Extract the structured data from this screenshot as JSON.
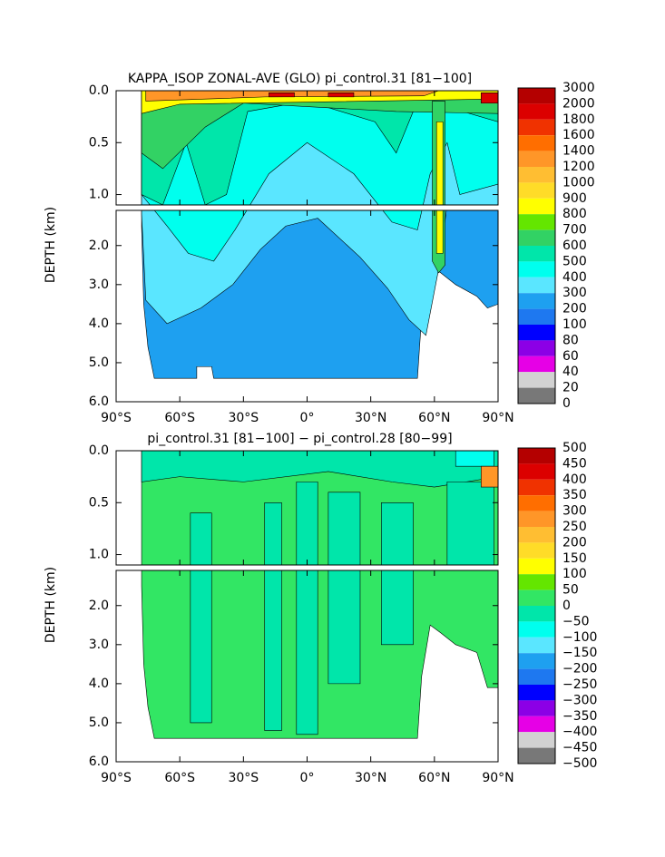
{
  "chart_data": [
    {
      "type": "contour",
      "title": "KAPPA_ISOP ZONAL-AVE (GLO) pi_control.31 [81−100]",
      "ylabel": "DEPTH (km)",
      "xlim": [
        -90,
        90
      ],
      "xticks": [
        {
          "value": -90,
          "label": "90°S"
        },
        {
          "value": -60,
          "label": "60°S"
        },
        {
          "value": -30,
          "label": "30°S"
        },
        {
          "value": 0,
          "label": "0°"
        },
        {
          "value": 30,
          "label": "30°N"
        },
        {
          "value": 60,
          "label": "60°N"
        },
        {
          "value": 90,
          "label": "90°N"
        }
      ],
      "panels": [
        {
          "ylim": [
            0,
            1.1
          ],
          "yticks": [
            {
              "value": 0,
              "label": "0.0"
            },
            {
              "value": 0.5,
              "label": "0.5"
            },
            {
              "value": 1,
              "label": "1.0"
            }
          ]
        },
        {
          "ylim": [
            1.1,
            6
          ],
          "yticks": [
            {
              "value": 2,
              "label": "2.0"
            },
            {
              "value": 3,
              "label": "3.0"
            },
            {
              "value": 4,
              "label": "4.0"
            },
            {
              "value": 5,
              "label": "5.0"
            },
            {
              "value": 6,
              "label": "6.0"
            }
          ]
        }
      ],
      "levels": [
        3000,
        2000,
        1800,
        1600,
        1400,
        1200,
        1000,
        900,
        800,
        700,
        600,
        500,
        400,
        300,
        200,
        100,
        80,
        60,
        40,
        20,
        0
      ],
      "colors": [
        "#b40000",
        "#dc0000",
        "#f03200",
        "#ff6e00",
        "#ff9628",
        "#ffbe32",
        "#ffdc28",
        "#ffff00",
        "#64e600",
        "#32d264",
        "#00e6aa",
        "#00ffee",
        "#5ae6ff",
        "#1ea0f0",
        "#1e78f0",
        "#0000ff",
        "#8c00e6",
        "#e600e6",
        "#d2d2d2",
        "#787878"
      ]
    },
    {
      "type": "contour",
      "title": "pi_control.31 [81−100] − pi_control.28 [80−99]",
      "ylabel": "DEPTH (km)",
      "xlim": [
        -90,
        90
      ],
      "xticks": [
        {
          "value": -90,
          "label": "90°S"
        },
        {
          "value": -60,
          "label": "60°S"
        },
        {
          "value": -30,
          "label": "30°S"
        },
        {
          "value": 0,
          "label": "0°"
        },
        {
          "value": 30,
          "label": "30°N"
        },
        {
          "value": 60,
          "label": "60°N"
        },
        {
          "value": 90,
          "label": "90°N"
        }
      ],
      "panels": [
        {
          "ylim": [
            0,
            1.1
          ],
          "yticks": [
            {
              "value": 0,
              "label": "0.0"
            },
            {
              "value": 0.5,
              "label": "0.5"
            },
            {
              "value": 1,
              "label": "1.0"
            }
          ]
        },
        {
          "ylim": [
            1.1,
            6
          ],
          "yticks": [
            {
              "value": 2,
              "label": "2.0"
            },
            {
              "value": 3,
              "label": "3.0"
            },
            {
              "value": 4,
              "label": "4.0"
            },
            {
              "value": 5,
              "label": "5.0"
            },
            {
              "value": 6,
              "label": "6.0"
            }
          ]
        }
      ],
      "levels": [
        500,
        450,
        400,
        350,
        300,
        250,
        200,
        150,
        100,
        50,
        0,
        {
          "value": -50,
          "label": "−50"
        },
        {
          "value": -100,
          "label": "−100"
        },
        {
          "value": -150,
          "label": "−150"
        },
        {
          "value": -200,
          "label": "−200"
        },
        {
          "value": -250,
          "label": "−250"
        },
        {
          "value": -300,
          "label": "−300"
        },
        {
          "value": -350,
          "label": "−350"
        },
        {
          "value": -400,
          "label": "−400"
        },
        {
          "value": -450,
          "label": "−450"
        },
        {
          "value": -500,
          "label": "−500"
        }
      ],
      "colors": [
        "#b40000",
        "#dc0000",
        "#f03200",
        "#ff6e00",
        "#ff9628",
        "#ffbe32",
        "#ffdc28",
        "#ffff00",
        "#64e600",
        "#32e664",
        "#00e6aa",
        "#00ffee",
        "#5ae6ff",
        "#1ea0f0",
        "#1e78f0",
        "#0000ff",
        "#8c00e6",
        "#e600e6",
        "#d2d2d2",
        "#787878"
      ]
    }
  ]
}
